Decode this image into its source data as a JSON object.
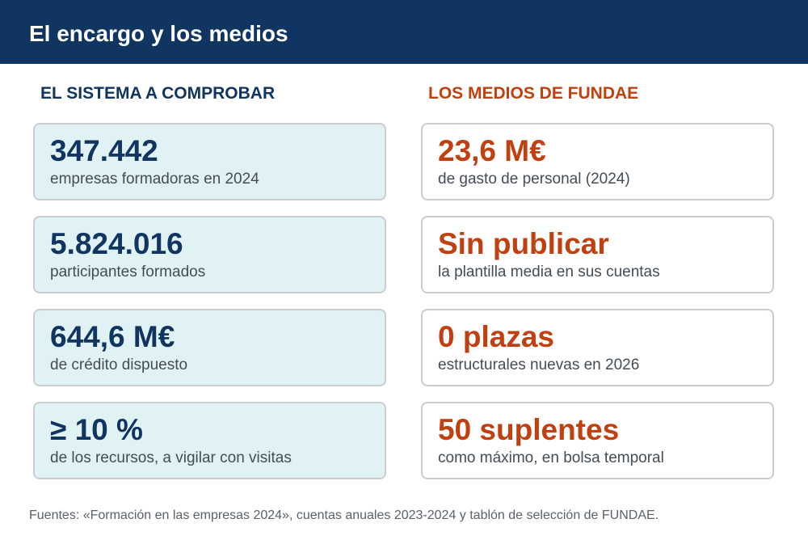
{
  "header": {
    "title": "El encargo y los medios"
  },
  "left_column": {
    "heading": "EL SISTEMA A COMPROBAR",
    "cards": [
      {
        "value": "347.442",
        "label": "empresas formadoras en 2024"
      },
      {
        "value": "5.824.016",
        "label": "participantes formados"
      },
      {
        "value": "644,6 M€",
        "label": "de crédito dispuesto"
      },
      {
        "value": "≥ 10 %",
        "label": "de los recursos, a vigilar con visitas"
      }
    ]
  },
  "right_column": {
    "heading": "LOS MEDIOS DE FUNDAE",
    "cards": [
      {
        "value": "23,6 M€",
        "label": "de gasto de personal (2024)"
      },
      {
        "value": "Sin publicar",
        "label": "la plantilla media en sus cuentas"
      },
      {
        "value": "0 plazas",
        "label": "estructurales nuevas en 2026"
      },
      {
        "value": "50 suplentes",
        "label": "como máximo, en bolsa temporal"
      }
    ]
  },
  "footer": {
    "text": "Fuentes: «Formación en las empresas 2024», cuentas anuales 2023-2024 y tablón de selección de FUNDAE."
  },
  "colors": {
    "header_bg": "#103561",
    "left_accent": "#103561",
    "right_accent": "#c0400f",
    "left_card_bg": "#e1f2f5"
  }
}
